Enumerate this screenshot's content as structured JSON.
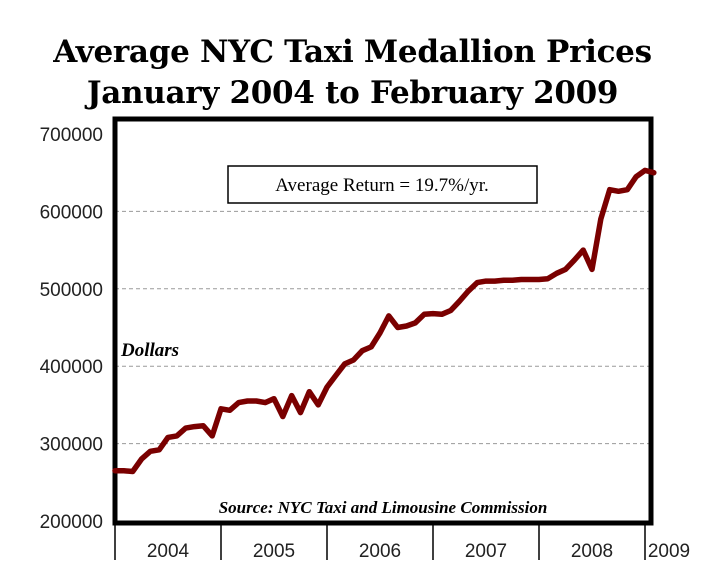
{
  "chart_data": {
    "type": "line",
    "title": [
      "Average NYC Taxi Medallion Prices",
      "January 2004 to February 2009"
    ],
    "ylabel": "Dollars",
    "xlabel": "",
    "ylim": [
      200000,
      700000
    ],
    "y_ticks": [
      "700000",
      "600000",
      "500000",
      "400000",
      "300000",
      "200000"
    ],
    "x_ticks": [
      "2004",
      "2005",
      "2006",
      "2007",
      "2008",
      "2009"
    ],
    "grid": "horizontal dashed",
    "line_color": "#7a0000",
    "annotations": {
      "return_box": "Average Return = 19.7%/yr.",
      "source": "Source: NYC Taxi and Limousine Commission"
    },
    "series": [
      {
        "x": [
          2004.0,
          2004.083,
          2004.167,
          2004.25,
          2004.333,
          2004.417,
          2004.5,
          2004.583,
          2004.667,
          2004.75,
          2004.833,
          2004.917,
          2005.0,
          2005.083,
          2005.167,
          2005.25,
          2005.333,
          2005.417,
          2005.5,
          2005.583,
          2005.667,
          2005.75,
          2005.833,
          2005.917,
          2006.0,
          2006.083,
          2006.167,
          2006.25,
          2006.333,
          2006.417,
          2006.5,
          2006.583,
          2006.667,
          2006.75,
          2006.833,
          2006.917,
          2007.0,
          2007.083,
          2007.167,
          2007.25,
          2007.333,
          2007.417,
          2007.5,
          2007.583,
          2007.667,
          2007.75,
          2007.833,
          2007.917,
          2008.0,
          2008.083,
          2008.167,
          2008.25,
          2008.333,
          2008.417,
          2008.5,
          2008.583,
          2008.667,
          2008.75,
          2008.833,
          2008.917,
          2009.0,
          2009.083
        ],
        "values": [
          265000,
          265000,
          264000,
          280000,
          290000,
          292000,
          308000,
          310000,
          320000,
          322000,
          323000,
          310000,
          345000,
          343000,
          353000,
          355000,
          355000,
          353000,
          358000,
          335000,
          362000,
          340000,
          367000,
          350000,
          373000,
          388000,
          403000,
          408000,
          420000,
          425000,
          443000,
          465000,
          450000,
          452000,
          456000,
          467000,
          468000,
          467000,
          472000,
          484000,
          497000,
          508000,
          510000,
          510000,
          511000,
          511000,
          512000,
          512000,
          512000,
          513000,
          520000,
          525000,
          537000,
          550000,
          525000,
          590000,
          628000,
          626000,
          628000,
          645000,
          653000,
          650000
        ]
      }
    ]
  }
}
